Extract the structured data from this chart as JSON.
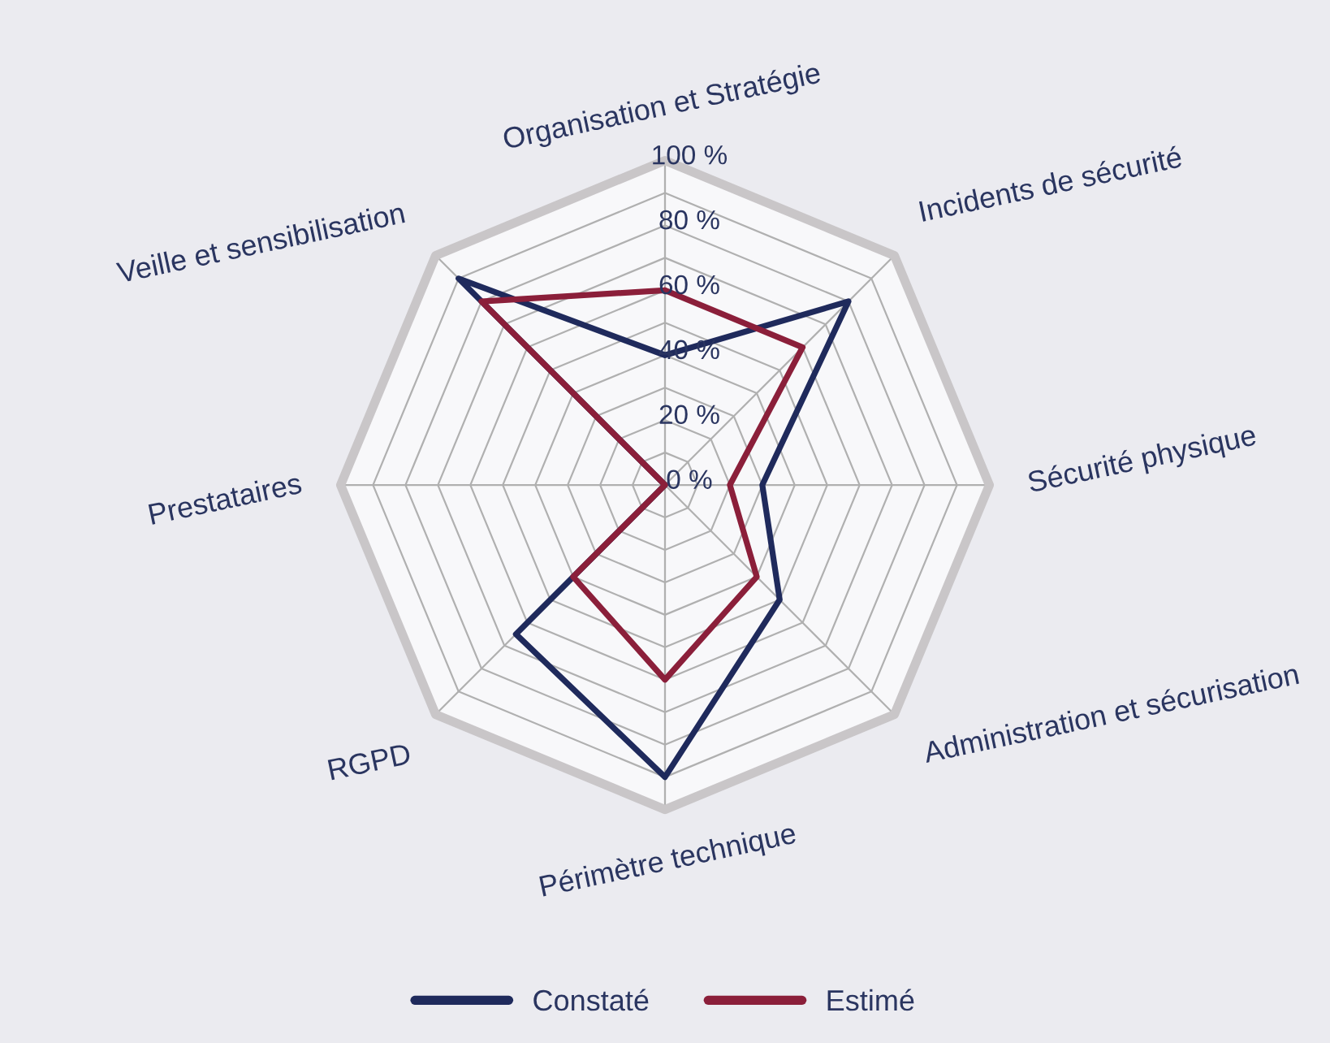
{
  "chart_data": {
    "type": "radar",
    "categories": [
      "Organisation et Stratégie",
      "Incidents de sécurité",
      "Sécurité physique",
      "Administration et sécurisation",
      "Périmètre technique",
      "RGPD",
      "Prestataires",
      "Veille et sensibilisation"
    ],
    "series": [
      {
        "name": "Constaté",
        "color": "#1f2a5c",
        "values": [
          40,
          80,
          30,
          50,
          90,
          65,
          0,
          90
        ]
      },
      {
        "name": "Estimé",
        "color": "#8b1f3a",
        "values": [
          60,
          60,
          20,
          40,
          60,
          40,
          0,
          80
        ]
      }
    ],
    "ylim": [
      0,
      100
    ],
    "yticks": [
      {
        "value": 0,
        "label": "0 %"
      },
      {
        "value": 20,
        "label": "20 %"
      },
      {
        "value": 40,
        "label": "40 %"
      },
      {
        "value": 60,
        "label": "60 %"
      },
      {
        "value": 80,
        "label": "80 %"
      },
      {
        "value": 100,
        "label": "100 %"
      }
    ],
    "grid": true,
    "legend": "bottom",
    "marker": "none",
    "line_style": "solid"
  }
}
